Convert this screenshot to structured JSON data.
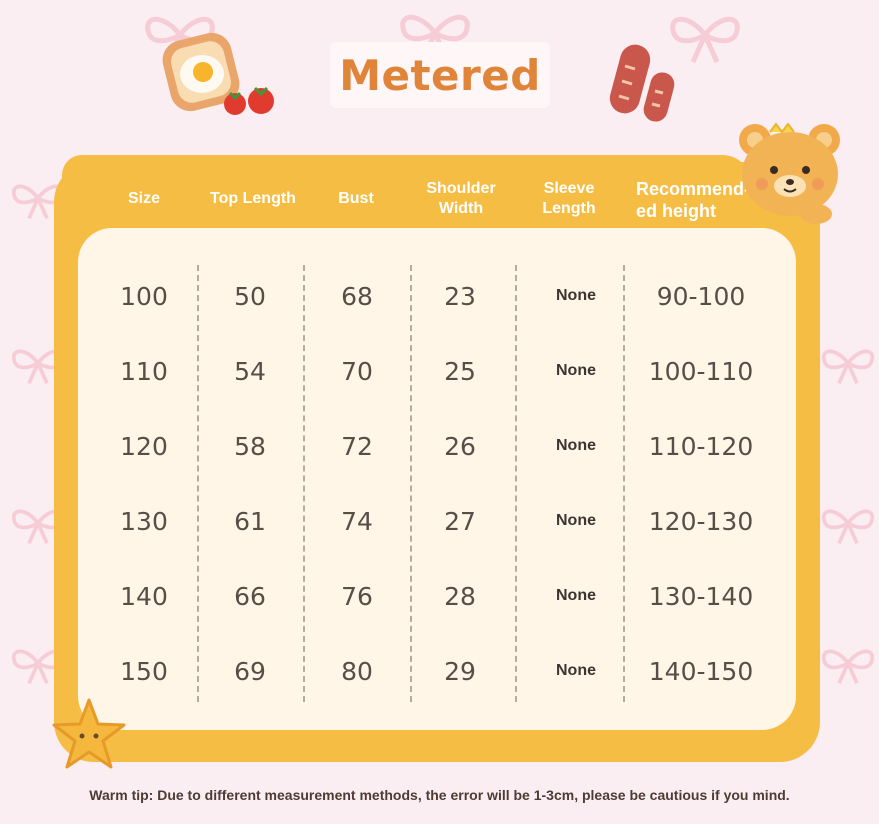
{
  "title": "Metered",
  "headers": [
    {
      "key": "size",
      "label": "Size"
    },
    {
      "key": "top_length",
      "label": "Top Length"
    },
    {
      "key": "bust",
      "label": "Bust"
    },
    {
      "key": "shoulder_width",
      "label": "Shoulder Width"
    },
    {
      "key": "sleeve_length",
      "label": "Sleeve Length"
    },
    {
      "key": "recommended_height",
      "label": "Recommend-ed height"
    }
  ],
  "rows": [
    [
      "100",
      "50",
      "68",
      "23",
      "None",
      "90-100"
    ],
    [
      "110",
      "54",
      "70",
      "25",
      "None",
      "100-110"
    ],
    [
      "120",
      "58",
      "72",
      "26",
      "None",
      "110-120"
    ],
    [
      "130",
      "61",
      "74",
      "27",
      "None",
      "120-130"
    ],
    [
      "140",
      "66",
      "76",
      "28",
      "None",
      "130-140"
    ],
    [
      "150",
      "69",
      "80",
      "29",
      "None",
      "140-150"
    ]
  ],
  "tip": "Warm tip: Due to different measurement methods, the error will be 1-3cm, please be cautious if you mind.",
  "colors": {
    "background": "#fbeef2",
    "frame": "#f6bd45",
    "panel": "#fff6e8",
    "title": "#e0843a"
  },
  "icons": [
    "bow-icon",
    "toast-egg-icon",
    "tomato-icon",
    "sausage-icon",
    "bear-icon",
    "star-icon"
  ]
}
